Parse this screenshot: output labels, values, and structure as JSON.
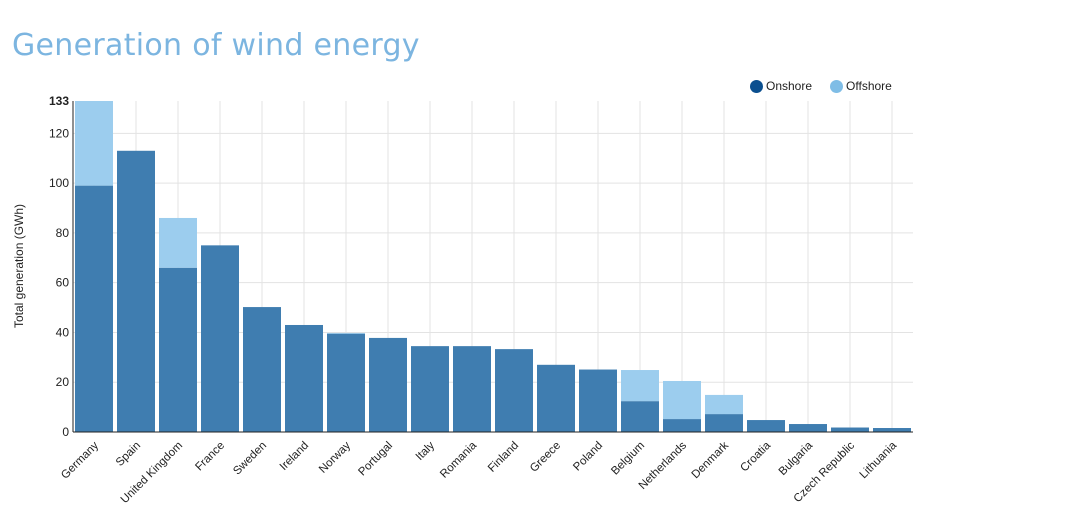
{
  "title": "Generation of wind energy",
  "colors": {
    "onshore": "#0b4f8f",
    "offshore": "#7fbde6",
    "onshore_bar": "#3f7db0",
    "offshore_bar": "#9ccdee"
  },
  "chart_data": {
    "type": "bar",
    "stacked": true,
    "title": "Generation of wind energy",
    "xlabel": "",
    "ylabel": "Total generation (GWh)",
    "ylim": [
      0,
      133
    ],
    "yticks": [
      0,
      20,
      40,
      60,
      80,
      100,
      120,
      133
    ],
    "grid": true,
    "legend_position": "top-right",
    "categories": [
      "Germany",
      "Spain",
      "United Kingdom",
      "France",
      "Sweden",
      "Ireland",
      "Norway",
      "Portugal",
      "Italy",
      "Romania",
      "Finland",
      "Greece",
      "Poland",
      "Belgium",
      "Netherlands",
      "Denmark",
      "Croatia",
      "Bulgaria",
      "Czech Republic",
      "Lithuania"
    ],
    "series": [
      {
        "name": "Onshore",
        "values": [
          99,
          113,
          66,
          75,
          50.2,
          43,
          39.5,
          37.8,
          34.5,
          34.5,
          33.3,
          27,
          25.1,
          12.4,
          5.2,
          7.2,
          4.8,
          3.2,
          1.8,
          1.6
        ]
      },
      {
        "name": "Offshore",
        "values": [
          34,
          0,
          20,
          0,
          0,
          0,
          0.3,
          0,
          0,
          0,
          0,
          0,
          0,
          12.5,
          15.3,
          7.7,
          0,
          0,
          0,
          0
        ]
      }
    ]
  }
}
